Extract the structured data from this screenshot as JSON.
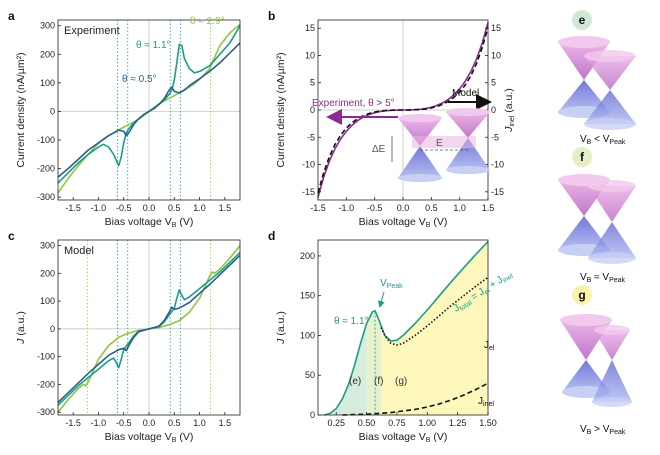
{
  "colors": {
    "light_green": "#8dc63f",
    "teal": "#1a9e8a",
    "navy": "#2b5f8c",
    "purple": "#8b2b8f",
    "black": "#111111",
    "yellow_fill": "#fdf6b0",
    "green_fill": "#cfe9d6"
  },
  "panels": {
    "a": {
      "letter": "a",
      "tag": "Experiment",
      "ylabel": "Current density (nA/µm²)",
      "xlabel": "Bias voltage V",
      "xsub": "B",
      "xunit": " (V)",
      "ann": [
        {
          "text": "θ ≈ 2.9°"
        },
        {
          "text": "θ ≈ 1.1°"
        },
        {
          "text": "θ ≈ 0.5°"
        }
      ]
    },
    "b": {
      "letter": "b",
      "ylabel": "Current density (nA/µm²)",
      "ylabel_right": "J",
      "ylabel_right_sub": "inel",
      "ylabel_right_unit": " (a.u.)",
      "xlabel": "Bias voltage V",
      "xsub": "B",
      "xunit": " (V)",
      "ann_experiment": "Experiment, θ > 5°",
      "ann_model": "Model",
      "ann_dE": "ΔE",
      "ann_E": "E"
    },
    "c": {
      "letter": "c",
      "tag": "Model",
      "ylabel": "J",
      "yunit": " (a.u.)",
      "xlabel": "Bias voltage V",
      "xsub": "B",
      "xunit": " (V)"
    },
    "d": {
      "letter": "d",
      "ylabel": "J",
      "yunit": " (a.u.)",
      "xlabel": "Bias voltage V",
      "xsub": "B",
      "xunit": " (V)",
      "ann_theta": "θ ≈ 1.1°",
      "ann_vpeak": "V",
      "ann_vpeak_sub": "Peak",
      "ann_jtotal": "J",
      "ann_jtotal_sub": "total",
      "ann_eq": " = J",
      "ann_el_sub": "el",
      "ann_plus": " + J",
      "ann_inel_sub": "inel",
      "ann_jel": "J",
      "ann_jel_sub": "el",
      "ann_jinel": "J",
      "ann_jinel_sub": "inel",
      "regions": [
        "(e)",
        "(f)",
        "(g)"
      ]
    },
    "e": {
      "letter": "e",
      "cap_v": "V",
      "cap_sub": "B",
      "cap_rel": " < V",
      "cap_peak": "Peak"
    },
    "f": {
      "letter": "f",
      "cap_v": "V",
      "cap_sub": "B",
      "cap_rel": " ≈ V",
      "cap_peak": "Peak"
    },
    "g": {
      "letter": "g",
      "cap_v": "V",
      "cap_sub": "B",
      "cap_rel": " > V",
      "cap_peak": "Peak"
    }
  },
  "chart_data": [
    {
      "panel": "a",
      "type": "line",
      "xlim": [
        -1.8,
        1.8
      ],
      "ylim": [
        -310,
        320
      ],
      "xticks": [
        -1.5,
        -1.0,
        -0.5,
        0.0,
        0.5,
        1.0,
        1.5
      ],
      "xtick_labels": [
        "-1.5",
        "-1.0",
        "-0.5",
        "0.0",
        "0.5",
        "1.0",
        "1.5"
      ],
      "yticks": [
        -300,
        -200,
        -100,
        0,
        100,
        200,
        300
      ],
      "ytick_labels": [
        "-300",
        "-200",
        "-100",
        "0",
        "100",
        "200",
        "300"
      ],
      "vlines": [
        -0.62,
        -0.42,
        0.42,
        0.62,
        1.22
      ],
      "series": [
        {
          "color": "light_green",
          "x": [
            -1.8,
            -1.6,
            -1.4,
            -1.2,
            -1.1,
            -1.0,
            -0.9,
            -0.8,
            -0.7,
            -0.6,
            -0.5,
            -0.4,
            -0.3,
            -0.2,
            -0.1,
            0,
            0.1,
            0.2,
            0.3,
            0.4,
            0.5,
            0.6,
            0.7,
            0.8,
            0.9,
            1.0,
            1.1,
            1.2,
            1.3,
            1.4,
            1.6,
            1.8
          ],
          "y": [
            -285,
            -235,
            -190,
            -150,
            -130,
            -112,
            -97,
            -85,
            -75,
            -65,
            -55,
            -46,
            -37,
            -27,
            -14,
            0,
            14,
            27,
            37,
            46,
            55,
            65,
            75,
            85,
            97,
            112,
            130,
            150,
            190,
            230,
            275,
            305
          ]
        },
        {
          "color": "teal",
          "x": [
            -1.8,
            -1.6,
            -1.4,
            -1.2,
            -1.0,
            -0.9,
            -0.8,
            -0.7,
            -0.65,
            -0.6,
            -0.55,
            -0.5,
            -0.45,
            -0.4,
            -0.3,
            -0.2,
            -0.1,
            0,
            0.1,
            0.2,
            0.3,
            0.4,
            0.45,
            0.5,
            0.55,
            0.6,
            0.65,
            0.7,
            0.8,
            0.9,
            1.0,
            1.2,
            1.4,
            1.6,
            1.8
          ],
          "y": [
            -250,
            -215,
            -180,
            -150,
            -125,
            -115,
            -125,
            -150,
            -170,
            -190,
            -160,
            -110,
            -75,
            -60,
            -40,
            -25,
            -12,
            0,
            12,
            25,
            40,
            60,
            75,
            110,
            170,
            235,
            230,
            185,
            150,
            135,
            140,
            160,
            200,
            240,
            300
          ]
        },
        {
          "color": "navy",
          "x": [
            -1.8,
            -1.6,
            -1.4,
            -1.2,
            -1.0,
            -0.8,
            -0.7,
            -0.6,
            -0.5,
            -0.45,
            -0.4,
            -0.3,
            -0.2,
            -0.1,
            0,
            0.1,
            0.2,
            0.3,
            0.4,
            0.45,
            0.5,
            0.6,
            0.7,
            0.8,
            1.0,
            1.2,
            1.4,
            1.6,
            1.8
          ],
          "y": [
            -230,
            -200,
            -168,
            -135,
            -110,
            -85,
            -75,
            -65,
            -70,
            -85,
            -75,
            -45,
            -25,
            -10,
            0,
            10,
            25,
            45,
            75,
            85,
            70,
            65,
            75,
            90,
            115,
            140,
            170,
            205,
            240
          ]
        }
      ]
    },
    {
      "panel": "b",
      "type": "line",
      "xlim": [
        -1.5,
        1.5
      ],
      "ylim": [
        -16.5,
        16.5
      ],
      "xticks": [
        -1.5,
        -1.0,
        -0.5,
        0.0,
        0.5,
        1.0,
        1.5
      ],
      "xtick_labels": [
        "-1.5",
        "-1.0",
        "-0.5",
        "0.0",
        "0.5",
        "1.0",
        "1.5"
      ],
      "yticks": [
        -15,
        -10,
        -5,
        0,
        5,
        10,
        15
      ],
      "ytick_labels": [
        "-15",
        "-10",
        "-5",
        "0",
        "5",
        "10",
        "15"
      ],
      "yticks_right": [
        -15,
        -10,
        -5,
        0,
        5,
        10,
        15
      ],
      "ytick_labels_right": [
        "-15",
        "-10",
        "-5",
        "0",
        "5",
        "10",
        "15"
      ],
      "series": [
        {
          "color": "purple",
          "style": "solid",
          "x": [
            -1.5,
            -1.4,
            -1.3,
            -1.2,
            -1.1,
            -1.0,
            -0.9,
            -0.8,
            -0.7,
            -0.6,
            -0.5,
            -0.4,
            -0.3,
            -0.2,
            -0.1,
            0,
            0.1,
            0.2,
            0.3,
            0.4,
            0.5,
            0.6,
            0.7,
            0.8,
            0.9,
            1.0,
            1.1,
            1.2,
            1.3,
            1.4,
            1.5
          ],
          "y": [
            -16,
            -12.3,
            -9.4,
            -7.1,
            -5.3,
            -3.9,
            -2.8,
            -1.95,
            -1.3,
            -0.85,
            -0.5,
            -0.28,
            -0.13,
            -0.05,
            -0.01,
            0,
            0.01,
            0.05,
            0.13,
            0.28,
            0.5,
            0.85,
            1.3,
            1.95,
            2.8,
            3.9,
            5.3,
            7.1,
            9.4,
            12.3,
            16
          ]
        },
        {
          "color": "black",
          "style": "dashed",
          "x": [
            -1.5,
            -1.4,
            -1.3,
            -1.2,
            -1.1,
            -1.0,
            -0.9,
            -0.8,
            -0.7,
            -0.6,
            -0.5,
            -0.4,
            -0.3,
            -0.2,
            -0.1,
            0,
            0.1,
            0.2,
            0.3,
            0.4,
            0.5,
            0.6,
            0.7,
            0.8,
            0.9,
            1.0,
            1.1,
            1.2,
            1.3,
            1.4,
            1.5
          ],
          "y": [
            -15.2,
            -11.5,
            -8.6,
            -6.3,
            -4.6,
            -3.3,
            -2.35,
            -1.6,
            -1.05,
            -0.65,
            -0.38,
            -0.2,
            -0.09,
            -0.03,
            -0.005,
            0,
            0.005,
            0.03,
            0.09,
            0.2,
            0.38,
            0.65,
            1.05,
            1.6,
            2.35,
            3.3,
            4.6,
            6.3,
            8.6,
            11.5,
            15.2
          ]
        }
      ]
    },
    {
      "panel": "c",
      "type": "line",
      "xlim": [
        -1.8,
        1.8
      ],
      "ylim": [
        -310,
        320
      ],
      "xticks": [
        -1.5,
        -1.0,
        -0.5,
        0.0,
        0.5,
        1.0,
        1.5
      ],
      "xtick_labels": [
        "-1.5",
        "-1.0",
        "-0.5",
        "0.0",
        "0.5",
        "1.0",
        "1.5"
      ],
      "yticks": [
        -300,
        -200,
        -100,
        0,
        100,
        200,
        300
      ],
      "ytick_labels": [
        "-300",
        "-200",
        "-100",
        "0",
        "100",
        "200",
        "300"
      ],
      "vlines": [
        -1.22,
        -0.62,
        -0.42,
        0.42,
        0.62,
        1.22
      ],
      "series": [
        {
          "color": "light_green",
          "x": [
            -1.8,
            -1.6,
            -1.4,
            -1.3,
            -1.25,
            -1.2,
            -1.1,
            -1.0,
            -0.8,
            -0.6,
            -0.4,
            -0.2,
            0,
            0.2,
            0.4,
            0.6,
            0.8,
            1.0,
            1.1,
            1.2,
            1.25,
            1.3,
            1.4,
            1.6,
            1.8
          ],
          "y": [
            -300,
            -255,
            -215,
            -200,
            -205,
            -190,
            -150,
            -110,
            -60,
            -30,
            -15,
            -5,
            0,
            5,
            15,
            30,
            60,
            110,
            150,
            190,
            205,
            200,
            215,
            255,
            300
          ]
        },
        {
          "color": "teal",
          "x": [
            -1.8,
            -1.6,
            -1.4,
            -1.2,
            -1.0,
            -0.8,
            -0.7,
            -0.65,
            -0.6,
            -0.55,
            -0.5,
            -0.4,
            -0.3,
            -0.2,
            0,
            0.2,
            0.3,
            0.4,
            0.5,
            0.55,
            0.6,
            0.65,
            0.7,
            0.8,
            1.0,
            1.2,
            1.4,
            1.6,
            1.8
          ],
          "y": [
            -275,
            -240,
            -205,
            -175,
            -145,
            -115,
            -105,
            -120,
            -140,
            -110,
            -75,
            -50,
            -25,
            -8,
            0,
            8,
            25,
            50,
            75,
            110,
            140,
            120,
            105,
            115,
            145,
            175,
            205,
            240,
            275
          ]
        },
        {
          "color": "navy",
          "x": [
            -1.8,
            -1.6,
            -1.4,
            -1.2,
            -1.0,
            -0.8,
            -0.6,
            -0.5,
            -0.45,
            -0.4,
            -0.3,
            -0.2,
            0,
            0.2,
            0.3,
            0.4,
            0.45,
            0.5,
            0.6,
            0.8,
            1.0,
            1.2,
            1.4,
            1.6,
            1.8
          ],
          "y": [
            -265,
            -230,
            -195,
            -160,
            -128,
            -95,
            -75,
            -70,
            -78,
            -60,
            -30,
            -10,
            0,
            10,
            30,
            60,
            78,
            70,
            75,
            95,
            128,
            160,
            195,
            230,
            265
          ]
        }
      ]
    },
    {
      "panel": "d",
      "type": "area",
      "xlim": [
        0.1,
        1.5
      ],
      "ylim": [
        0,
        220
      ],
      "xticks": [
        0.25,
        0.5,
        0.75,
        1.0,
        1.25,
        1.5
      ],
      "xtick_labels": [
        "0.25",
        "0.50",
        "0.75",
        "1.00",
        "1.25",
        "1.50"
      ],
      "yticks": [
        0,
        50,
        100,
        150,
        200
      ],
      "ytick_labels": [
        "0",
        "50",
        "100",
        "150",
        "200"
      ],
      "regions_x": [
        [
          0.1,
          0.5
        ],
        [
          0.5,
          0.62
        ],
        [
          0.62,
          1.5
        ]
      ],
      "peak": {
        "x": 0.57,
        "y": 130
      },
      "series": [
        {
          "name_key": "jtotal",
          "color": "teal",
          "style": "solid",
          "x": [
            0.15,
            0.2,
            0.25,
            0.3,
            0.35,
            0.4,
            0.45,
            0.5,
            0.55,
            0.57,
            0.6,
            0.65,
            0.7,
            0.75,
            0.8,
            0.9,
            1.0,
            1.1,
            1.2,
            1.3,
            1.4,
            1.5
          ],
          "y": [
            0,
            2,
            8,
            20,
            38,
            62,
            90,
            115,
            130,
            131,
            120,
            100,
            93,
            94,
            100,
            115,
            132,
            150,
            168,
            185,
            202,
            218
          ]
        },
        {
          "name_key": "jel",
          "color": "black",
          "style": "dotted",
          "x": [
            0.62,
            0.65,
            0.7,
            0.75,
            0.8,
            0.9,
            1.0,
            1.1,
            1.2,
            1.3,
            1.4,
            1.5
          ],
          "y": [
            110,
            100,
            90,
            88,
            90,
            100,
            112,
            125,
            138,
            150,
            162,
            173
          ]
        },
        {
          "name_key": "jinel",
          "color": "black",
          "style": "dashed",
          "x": [
            0.3,
            0.4,
            0.5,
            0.6,
            0.7,
            0.8,
            0.9,
            1.0,
            1.1,
            1.2,
            1.3,
            1.4,
            1.5
          ],
          "y": [
            0,
            0.5,
            1,
            2,
            3,
            5,
            7,
            10,
            14,
            19,
            25,
            32,
            40
          ]
        }
      ]
    }
  ]
}
